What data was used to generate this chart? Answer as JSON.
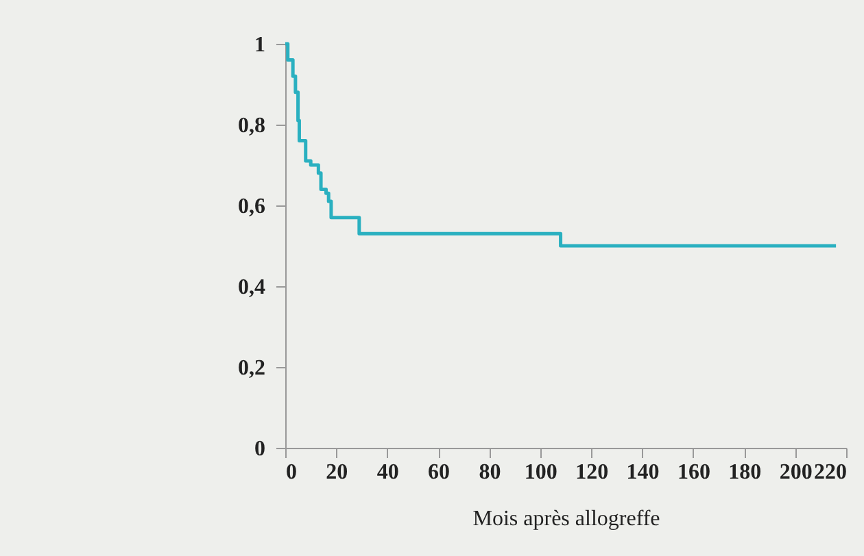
{
  "chart_data": {
    "type": "step",
    "xlabel": "Mois après allogreffe",
    "x": [
      0,
      1,
      3,
      4,
      5,
      5.5,
      8,
      10,
      13,
      14,
      16,
      17,
      18,
      29,
      108,
      216
    ],
    "series": [
      {
        "color": "#2ab0c0",
        "values": [
          1,
          0.96,
          0.92,
          0.88,
          0.81,
          0.76,
          0.71,
          0.7,
          0.68,
          0.64,
          0.63,
          0.61,
          0.57,
          0.53,
          0.5,
          0.5
        ]
      }
    ],
    "xlim": [
      0,
      220
    ],
    "xticks": [
      0,
      20,
      40,
      60,
      80,
      100,
      120,
      140,
      160,
      180,
      200,
      220
    ],
    "ylim": [
      0,
      1
    ],
    "yticks": [
      0,
      {
        "value": 0.2,
        "label": "0,2"
      },
      {
        "value": 0.4,
        "label": "0,4"
      },
      {
        "value": 0.6,
        "label": "0,6"
      },
      {
        "value": 0.8,
        "label": "0,8"
      },
      1
    ],
    "grid": false
  }
}
